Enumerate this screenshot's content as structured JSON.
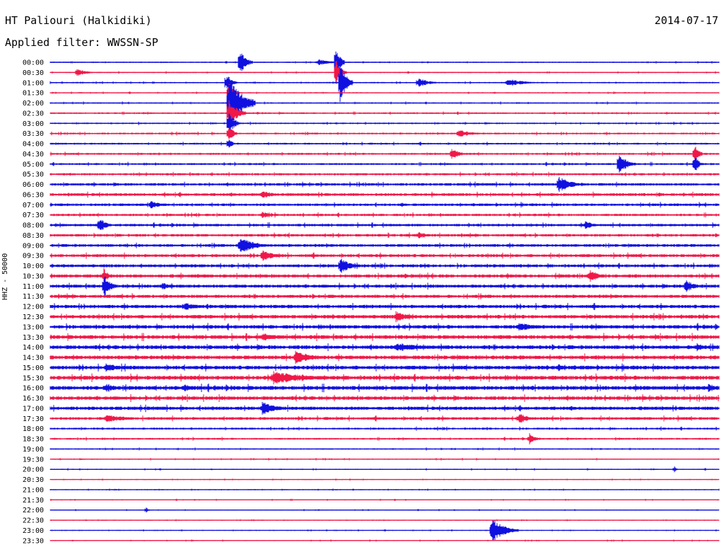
{
  "header": {
    "station": "HT Paliouri (Halkidiki)",
    "date": "2014-07-17",
    "filter": "Applied filter: WWSSN-SP"
  },
  "side_label": "HHZ - 50000",
  "chart_data": {
    "type": "line",
    "title": "HT Paliouri (Halkidiki)",
    "subtitle": "Applied filter: WWSSN-SP",
    "ylabel": "HHZ - 50000",
    "y_tick_labels": [
      "00:00",
      "00:30",
      "01:00",
      "01:30",
      "02:00",
      "02:30",
      "03:00",
      "03:30",
      "04:00",
      "04:30",
      "05:00",
      "05:30",
      "06:00",
      "06:30",
      "07:00",
      "07:30",
      "08:00",
      "08:30",
      "09:00",
      "09:30",
      "10:00",
      "10:30",
      "11:00",
      "11:30",
      "12:00",
      "12:30",
      "13:00",
      "13:30",
      "14:00",
      "14:30",
      "15:00",
      "15:30",
      "16:00",
      "16:30",
      "17:00",
      "17:30",
      "18:00",
      "18:30",
      "19:00",
      "19:30",
      "20:00",
      "20:30",
      "21:00",
      "21:30",
      "22:00",
      "22:30",
      "23:00",
      "23:30"
    ],
    "trace_colors": [
      "#1010e0",
      "#f01848"
    ],
    "trace_duration_min": 30,
    "noise_levels": [
      0.6,
      0.6,
      0.7,
      0.6,
      0.7,
      0.8,
      0.8,
      0.9,
      0.9,
      1.0,
      1.0,
      1.1,
      1.3,
      1.4,
      1.3,
      1.2,
      1.3,
      1.3,
      1.4,
      1.5,
      1.5,
      1.6,
      1.6,
      1.6,
      1.7,
      1.8,
      1.8,
      1.9,
      1.9,
      1.9,
      1.9,
      2.0,
      2.0,
      1.8,
      1.7,
      1.4,
      1.0,
      0.9,
      0.7,
      0.6,
      0.6,
      0.5,
      0.5,
      0.5,
      0.5,
      0.5,
      0.5,
      0.5
    ],
    "events": [
      {
        "trace": 0,
        "minute": 8.5,
        "amplitude": 18,
        "duration_min": 0.6
      },
      {
        "trace": 0,
        "minute": 12.0,
        "amplitude": 5,
        "duration_min": 1.2
      },
      {
        "trace": 0,
        "minute": 13.0,
        "amplitude": 6,
        "duration_min": 0.3
      },
      {
        "trace": 0,
        "minute": 12.8,
        "amplitude": 25,
        "duration_min": 0.4
      },
      {
        "trace": 1,
        "minute": 1.2,
        "amplitude": 6,
        "duration_min": 0.8
      },
      {
        "trace": 1,
        "minute": 12.8,
        "amplitude": 20,
        "duration_min": 0.5
      },
      {
        "trace": 2,
        "minute": 13.0,
        "amplitude": 28,
        "duration_min": 0.6
      },
      {
        "trace": 2,
        "minute": 7.9,
        "amplitude": 14,
        "duration_min": 0.5
      },
      {
        "trace": 2,
        "minute": 16.5,
        "amplitude": 7,
        "duration_min": 1.0
      },
      {
        "trace": 2,
        "minute": 20.5,
        "amplitude": 6,
        "duration_min": 1.5
      },
      {
        "trace": 3,
        "minute": 8.0,
        "amplitude": 16,
        "duration_min": 0.5
      },
      {
        "trace": 4,
        "minute": 8.0,
        "amplitude": 40,
        "duration_min": 1.2
      },
      {
        "trace": 5,
        "minute": 8.0,
        "amplitude": 20,
        "duration_min": 0.8
      },
      {
        "trace": 6,
        "minute": 8.0,
        "amplitude": 18,
        "duration_min": 0.5
      },
      {
        "trace": 7,
        "minute": 8.0,
        "amplitude": 14,
        "duration_min": 0.4
      },
      {
        "trace": 7,
        "minute": 18.3,
        "amplitude": 6,
        "duration_min": 1.2
      },
      {
        "trace": 8,
        "minute": 8.0,
        "amplitude": 10,
        "duration_min": 0.3
      },
      {
        "trace": 9,
        "minute": 18.0,
        "amplitude": 8,
        "duration_min": 0.8
      },
      {
        "trace": 9,
        "minute": 28.9,
        "amplitude": 16,
        "duration_min": 0.4
      },
      {
        "trace": 10,
        "minute": 25.5,
        "amplitude": 16,
        "duration_min": 0.8
      },
      {
        "trace": 10,
        "minute": 28.9,
        "amplitude": 14,
        "duration_min": 0.4
      },
      {
        "trace": 12,
        "minute": 22.8,
        "amplitude": 12,
        "duration_min": 1.2
      },
      {
        "trace": 13,
        "minute": 9.5,
        "amplitude": 6,
        "duration_min": 1.2
      },
      {
        "trace": 14,
        "minute": 4.5,
        "amplitude": 6,
        "duration_min": 1.2
      },
      {
        "trace": 15,
        "minute": 9.5,
        "amplitude": 5,
        "duration_min": 0.8
      },
      {
        "trace": 16,
        "minute": 2.2,
        "amplitude": 12,
        "duration_min": 0.6
      },
      {
        "trace": 16,
        "minute": 24.0,
        "amplitude": 6,
        "duration_min": 0.8
      },
      {
        "trace": 17,
        "minute": 16.5,
        "amplitude": 6,
        "duration_min": 0.8
      },
      {
        "trace": 18,
        "minute": 8.5,
        "amplitude": 12,
        "duration_min": 1.5
      },
      {
        "trace": 19,
        "minute": 9.5,
        "amplitude": 8,
        "duration_min": 1.2
      },
      {
        "trace": 20,
        "minute": 13.0,
        "amplitude": 12,
        "duration_min": 1.0
      },
      {
        "trace": 21,
        "minute": 24.2,
        "amplitude": 10,
        "duration_min": 0.8
      },
      {
        "trace": 21,
        "minute": 2.4,
        "amplitude": 12,
        "duration_min": 0.4
      },
      {
        "trace": 22,
        "minute": 2.4,
        "amplitude": 18,
        "duration_min": 0.6
      },
      {
        "trace": 22,
        "minute": 28.5,
        "amplitude": 10,
        "duration_min": 0.8
      },
      {
        "trace": 22,
        "minute": 5.0,
        "amplitude": 6,
        "duration_min": 0.8
      },
      {
        "trace": 24,
        "minute": 6.0,
        "amplitude": 6,
        "duration_min": 1.5
      },
      {
        "trace": 25,
        "minute": 15.5,
        "amplitude": 8,
        "duration_min": 1.2
      },
      {
        "trace": 26,
        "minute": 21.0,
        "amplitude": 6,
        "duration_min": 2.0
      },
      {
        "trace": 27,
        "minute": 9.5,
        "amplitude": 6,
        "duration_min": 2.0
      },
      {
        "trace": 28,
        "minute": 15.5,
        "amplitude": 6,
        "duration_min": 3.0
      },
      {
        "trace": 28,
        "minute": 29.0,
        "amplitude": 7,
        "duration_min": 0.6
      },
      {
        "trace": 29,
        "minute": 11.0,
        "amplitude": 10,
        "duration_min": 1.5
      },
      {
        "trace": 30,
        "minute": 2.5,
        "amplitude": 6,
        "duration_min": 1.5
      },
      {
        "trace": 30,
        "minute": 22.8,
        "amplitude": 6,
        "duration_min": 0.6
      },
      {
        "trace": 31,
        "minute": 10.0,
        "amplitude": 10,
        "duration_min": 3.0
      },
      {
        "trace": 32,
        "minute": 2.5,
        "amplitude": 6,
        "duration_min": 1.5
      },
      {
        "trace": 32,
        "minute": 6.0,
        "amplitude": 6,
        "duration_min": 1.0
      },
      {
        "trace": 32,
        "minute": 29.5,
        "amplitude": 6,
        "duration_min": 1.0
      },
      {
        "trace": 34,
        "minute": 9.5,
        "amplitude": 10,
        "duration_min": 1.2
      },
      {
        "trace": 35,
        "minute": 2.5,
        "amplitude": 6,
        "duration_min": 2.0
      },
      {
        "trace": 35,
        "minute": 21.0,
        "amplitude": 8,
        "duration_min": 1.0
      },
      {
        "trace": 37,
        "minute": 21.5,
        "amplitude": 8,
        "duration_min": 0.6
      },
      {
        "trace": 40,
        "minute": 28.0,
        "amplitude": 5,
        "duration_min": 0.2
      },
      {
        "trace": 44,
        "minute": 4.3,
        "amplitude": 5,
        "duration_min": 0.2
      },
      {
        "trace": 46,
        "minute": 19.8,
        "amplitude": 18,
        "duration_min": 1.2
      }
    ]
  }
}
